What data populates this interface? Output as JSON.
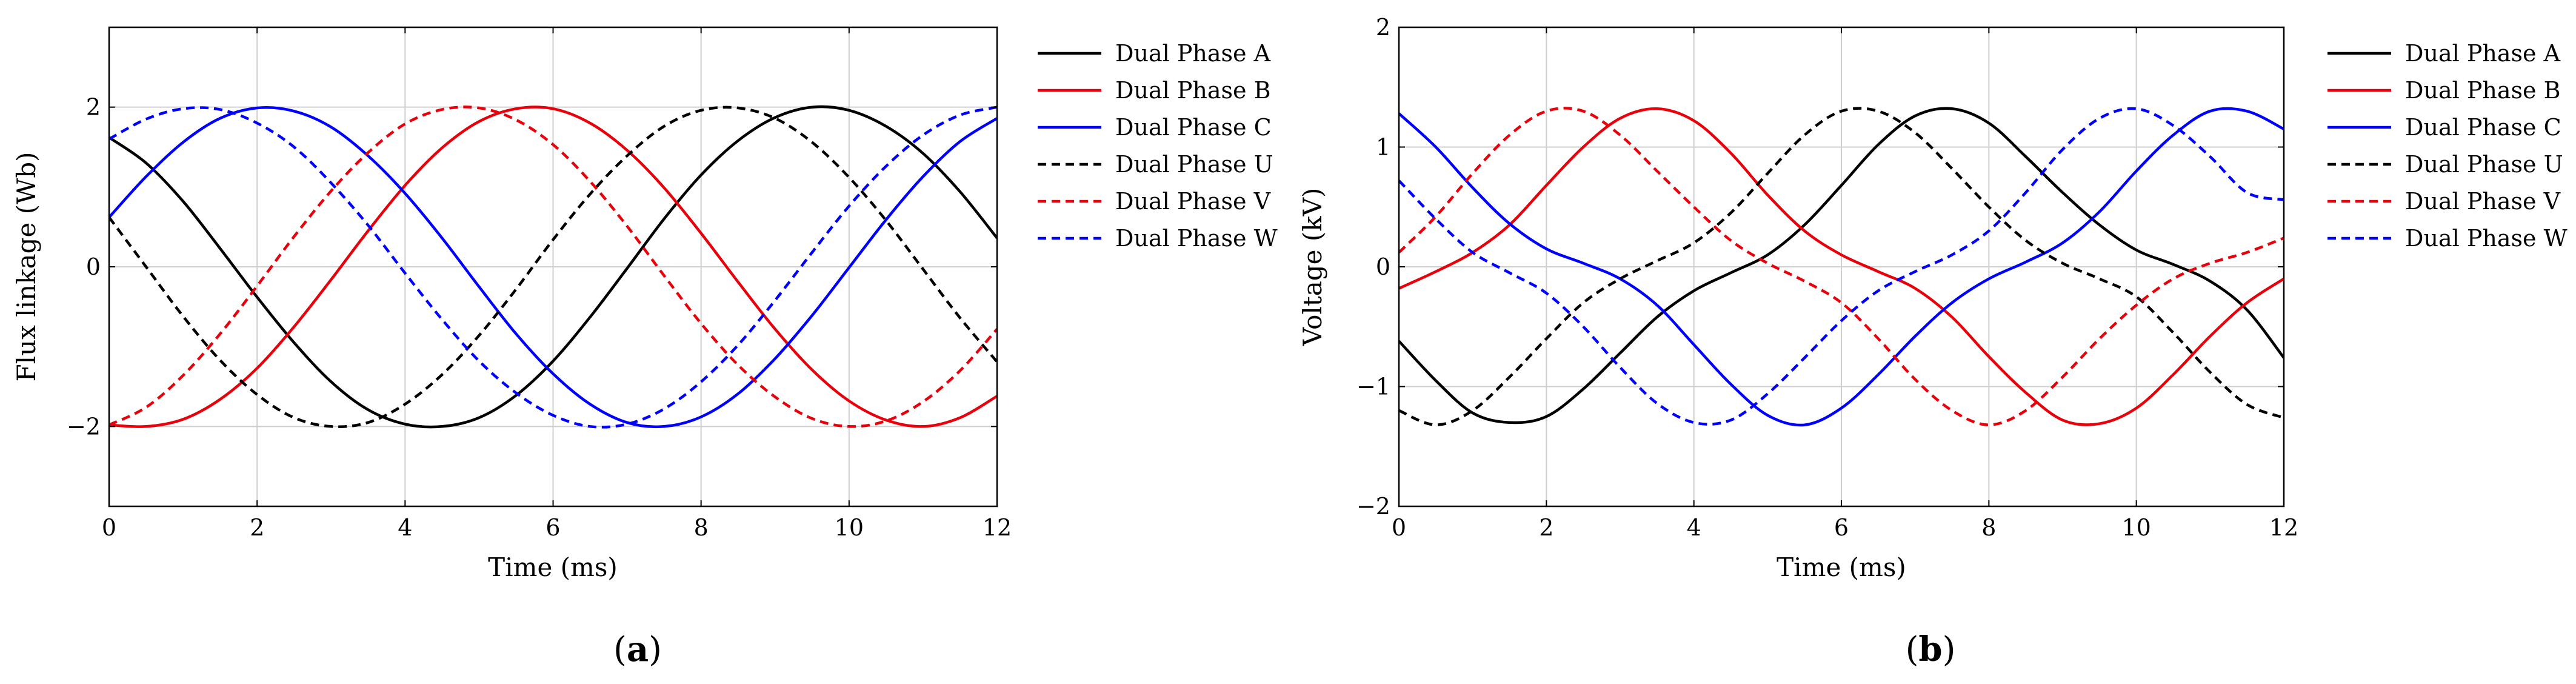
{
  "figure": {
    "panel_labels": [
      {
        "open": "(",
        "letter": "a",
        "close": ")"
      },
      {
        "open": "(",
        "letter": "b",
        "close": ")"
      }
    ]
  },
  "chart_data": [
    {
      "type": "line",
      "panel": "a",
      "title": "",
      "xlabel": "Time (ms)",
      "ylabel": "Flux linkage (Wb)",
      "xlim": [
        0,
        12
      ],
      "ylim": [
        -3,
        3
      ],
      "xticks": [
        0,
        2,
        4,
        6,
        8,
        10,
        12
      ],
      "yticks": [
        -2,
        0,
        2
      ],
      "ytick_labels": [
        "−2",
        "0",
        "2"
      ],
      "grid": true,
      "legend_position": "outside-right-top",
      "series": [
        {
          "name": "Dual Phase A",
          "color": "#000000",
          "dash": "solid",
          "x": [
            0,
            0.5,
            1,
            1.5,
            2,
            2.5,
            3,
            3.5,
            4,
            4.5,
            5,
            5.5,
            6,
            6.5,
            7,
            7.5,
            8,
            8.5,
            9,
            9.5,
            10,
            10.5,
            11,
            11.5,
            12
          ],
          "y": [
            1.62,
            1.3,
            0.82,
            0.23,
            -0.38,
            -0.95,
            -1.44,
            -1.79,
            -1.97,
            -2.0,
            -1.89,
            -1.61,
            -1.18,
            -0.63,
            -0.02,
            0.6,
            1.15,
            1.58,
            1.87,
            2.0,
            1.96,
            1.76,
            1.42,
            0.94,
            0.36
          ]
        },
        {
          "name": "Dual Phase B",
          "color": "#e8000b",
          "dash": "solid",
          "x": [
            0,
            0.5,
            1,
            1.5,
            2,
            2.5,
            3,
            3.5,
            4,
            4.5,
            5,
            5.5,
            6,
            6.5,
            7,
            7.5,
            8,
            8.5,
            9,
            9.5,
            10,
            10.5,
            11,
            11.5,
            12
          ],
          "y": [
            -1.98,
            -2.0,
            -1.91,
            -1.66,
            -1.27,
            -0.75,
            -0.16,
            0.45,
            1.02,
            1.49,
            1.82,
            1.98,
            1.98,
            1.8,
            1.46,
            0.99,
            0.42,
            -0.19,
            -0.78,
            -1.29,
            -1.68,
            -1.92,
            -2.0,
            -1.89,
            -1.62
          ]
        },
        {
          "name": "Dual Phase C",
          "color": "#0000ff",
          "dash": "solid",
          "x": [
            0,
            0.5,
            1,
            1.5,
            2,
            2.5,
            3,
            3.5,
            4,
            4.5,
            5,
            5.5,
            6,
            6.5,
            7,
            7.5,
            8,
            8.5,
            9,
            9.5,
            10,
            10.5,
            11,
            11.5,
            12
          ],
          "y": [
            0.62,
            1.13,
            1.56,
            1.86,
            1.99,
            1.95,
            1.75,
            1.39,
            0.92,
            0.36,
            -0.25,
            -0.84,
            -1.34,
            -1.72,
            -1.95,
            -2.0,
            -1.88,
            -1.59,
            -1.15,
            -0.61,
            -0.01,
            0.59,
            1.13,
            1.57,
            1.86
          ]
        },
        {
          "name": "Dual Phase U",
          "color": "#000000",
          "dash": "dashed",
          "x": [
            0,
            0.5,
            1,
            1.5,
            2,
            2.5,
            3,
            3.5,
            4,
            4.5,
            5,
            5.5,
            6,
            6.5,
            7,
            7.5,
            8,
            8.5,
            9,
            9.5,
            10,
            10.5,
            11,
            11.5,
            12
          ],
          "y": [
            0.62,
            0.0,
            -0.62,
            -1.17,
            -1.6,
            -1.89,
            -2.0,
            -1.95,
            -1.72,
            -1.35,
            -0.86,
            -0.28,
            0.34,
            0.91,
            1.39,
            1.76,
            1.96,
            1.99,
            1.86,
            1.56,
            1.12,
            0.58,
            -0.03,
            -0.64,
            -1.19
          ]
        },
        {
          "name": "Dual Phase V",
          "color": "#e8000b",
          "dash": "dashed",
          "x": [
            0,
            0.5,
            1,
            1.5,
            2,
            2.5,
            3,
            3.5,
            4,
            4.5,
            5,
            5.5,
            6,
            6.5,
            7,
            7.5,
            8,
            8.5,
            9,
            9.5,
            10,
            10.5,
            11,
            11.5,
            12
          ],
          "y": [
            -1.98,
            -1.76,
            -1.36,
            -0.84,
            -0.24,
            0.38,
            0.95,
            1.43,
            1.79,
            1.97,
            1.99,
            1.84,
            1.53,
            1.07,
            0.51,
            -0.11,
            -0.71,
            -1.23,
            -1.63,
            -1.9,
            -2.0,
            -1.93,
            -1.69,
            -1.3,
            -0.78
          ]
        },
        {
          "name": "Dual Phase W",
          "color": "#0000ff",
          "dash": "dashed",
          "x": [
            0,
            0.5,
            1,
            1.5,
            2,
            2.5,
            3,
            3.5,
            4,
            4.5,
            5,
            5.5,
            6,
            6.5,
            7,
            7.5,
            8,
            8.5,
            9,
            9.5,
            10,
            10.5,
            11,
            11.5,
            12
          ],
          "y": [
            1.6,
            1.85,
            1.98,
            1.97,
            1.8,
            1.5,
            1.05,
            0.52,
            -0.08,
            -0.66,
            -1.18,
            -1.58,
            -1.86,
            -2.0,
            -1.97,
            -1.78,
            -1.44,
            -0.98,
            -0.42,
            0.18,
            0.76,
            1.26,
            1.65,
            1.9,
            2.0
          ]
        }
      ]
    },
    {
      "type": "line",
      "panel": "b",
      "title": "",
      "xlabel": "Time (ms)",
      "ylabel": "Voltage (kV)",
      "xlim": [
        0,
        12
      ],
      "ylim": [
        -2,
        2
      ],
      "xticks": [
        0,
        2,
        4,
        6,
        8,
        10,
        12
      ],
      "yticks": [
        -2,
        -1,
        0,
        1,
        2
      ],
      "ytick_labels": [
        "−2",
        "−1",
        "0",
        "1",
        "2"
      ],
      "grid": true,
      "legend_position": "outside-right-top",
      "series": [
        {
          "name": "Dual Phase A",
          "color": "#000000",
          "dash": "solid",
          "x": [
            0,
            0.5,
            1,
            1.5,
            2,
            2.5,
            3,
            3.5,
            4,
            4.5,
            5,
            5.5,
            6,
            6.5,
            7,
            7.5,
            8,
            8.5,
            9,
            9.5,
            10,
            10.5,
            11,
            11.5,
            12
          ],
          "y": [
            -0.62,
            -0.95,
            -1.22,
            -1.3,
            -1.25,
            -1.02,
            -0.72,
            -0.42,
            -0.2,
            -0.05,
            0.1,
            0.35,
            0.68,
            1.02,
            1.26,
            1.32,
            1.2,
            0.92,
            0.62,
            0.35,
            0.14,
            0.02,
            -0.12,
            -0.36,
            -0.76
          ]
        },
        {
          "name": "Dual Phase B",
          "color": "#e8000b",
          "dash": "solid",
          "x": [
            0,
            0.5,
            1,
            1.5,
            2,
            2.5,
            3,
            3.5,
            4,
            4.5,
            5,
            5.5,
            6,
            6.5,
            7,
            7.5,
            8,
            8.5,
            9,
            9.5,
            10,
            10.5,
            11,
            11.5,
            12
          ],
          "y": [
            -0.18,
            -0.04,
            0.12,
            0.35,
            0.68,
            1.0,
            1.24,
            1.32,
            1.22,
            0.95,
            0.6,
            0.3,
            0.1,
            -0.04,
            -0.18,
            -0.42,
            -0.75,
            -1.05,
            -1.28,
            -1.31,
            -1.18,
            -0.9,
            -0.58,
            -0.3,
            -0.1
          ]
        },
        {
          "name": "Dual Phase C",
          "color": "#0000ff",
          "dash": "solid",
          "x": [
            0,
            0.5,
            1,
            1.5,
            2,
            2.5,
            3,
            3.5,
            4,
            4.5,
            5,
            5.5,
            6,
            6.5,
            7,
            7.5,
            8,
            8.5,
            9,
            9.5,
            10,
            10.5,
            11,
            11.5,
            12
          ],
          "y": [
            1.28,
            1.0,
            0.66,
            0.36,
            0.15,
            0.03,
            -0.1,
            -0.32,
            -0.65,
            -0.98,
            -1.24,
            -1.32,
            -1.18,
            -0.9,
            -0.58,
            -0.3,
            -0.1,
            0.04,
            0.2,
            0.46,
            0.8,
            1.1,
            1.3,
            1.3,
            1.15
          ]
        },
        {
          "name": "Dual Phase U",
          "color": "#000000",
          "dash": "dashed",
          "x": [
            0,
            0.5,
            1,
            1.5,
            2,
            2.5,
            3,
            3.5,
            4,
            4.5,
            5,
            5.5,
            6,
            6.5,
            7,
            7.5,
            8,
            8.5,
            9,
            9.5,
            10,
            10.5,
            11,
            11.5,
            12
          ],
          "y": [
            -1.2,
            -1.32,
            -1.2,
            -0.92,
            -0.6,
            -0.3,
            -0.1,
            0.05,
            0.2,
            0.45,
            0.78,
            1.1,
            1.3,
            1.3,
            1.12,
            0.82,
            0.5,
            0.22,
            0.03,
            -0.1,
            -0.25,
            -0.55,
            -0.88,
            -1.15,
            -1.26
          ]
        },
        {
          "name": "Dual Phase V",
          "color": "#e8000b",
          "dash": "dashed",
          "x": [
            0,
            0.5,
            1,
            1.5,
            2,
            2.5,
            3,
            3.5,
            4,
            4.5,
            5,
            5.5,
            6,
            6.5,
            7,
            7.5,
            8,
            8.5,
            9,
            9.5,
            10,
            10.5,
            11,
            11.5,
            12
          ],
          "y": [
            0.12,
            0.42,
            0.78,
            1.1,
            1.3,
            1.3,
            1.1,
            0.8,
            0.5,
            0.22,
            0.03,
            -0.12,
            -0.3,
            -0.6,
            -0.94,
            -1.2,
            -1.32,
            -1.2,
            -0.92,
            -0.6,
            -0.32,
            -0.1,
            0.03,
            0.12,
            0.24
          ]
        },
        {
          "name": "Dual Phase W",
          "color": "#0000ff",
          "dash": "dashed",
          "x": [
            0,
            0.5,
            1,
            1.5,
            2,
            2.5,
            3,
            3.5,
            4,
            4.5,
            5,
            5.5,
            6,
            6.5,
            7,
            7.5,
            8,
            8.5,
            9,
            9.5,
            10,
            10.5,
            11,
            11.5,
            12
          ],
          "y": [
            0.72,
            0.4,
            0.12,
            -0.05,
            -0.22,
            -0.5,
            -0.84,
            -1.14,
            -1.3,
            -1.28,
            -1.06,
            -0.76,
            -0.45,
            -0.2,
            -0.04,
            0.1,
            0.3,
            0.62,
            0.98,
            1.24,
            1.32,
            1.18,
            0.92,
            0.62,
            0.56
          ]
        }
      ]
    }
  ]
}
